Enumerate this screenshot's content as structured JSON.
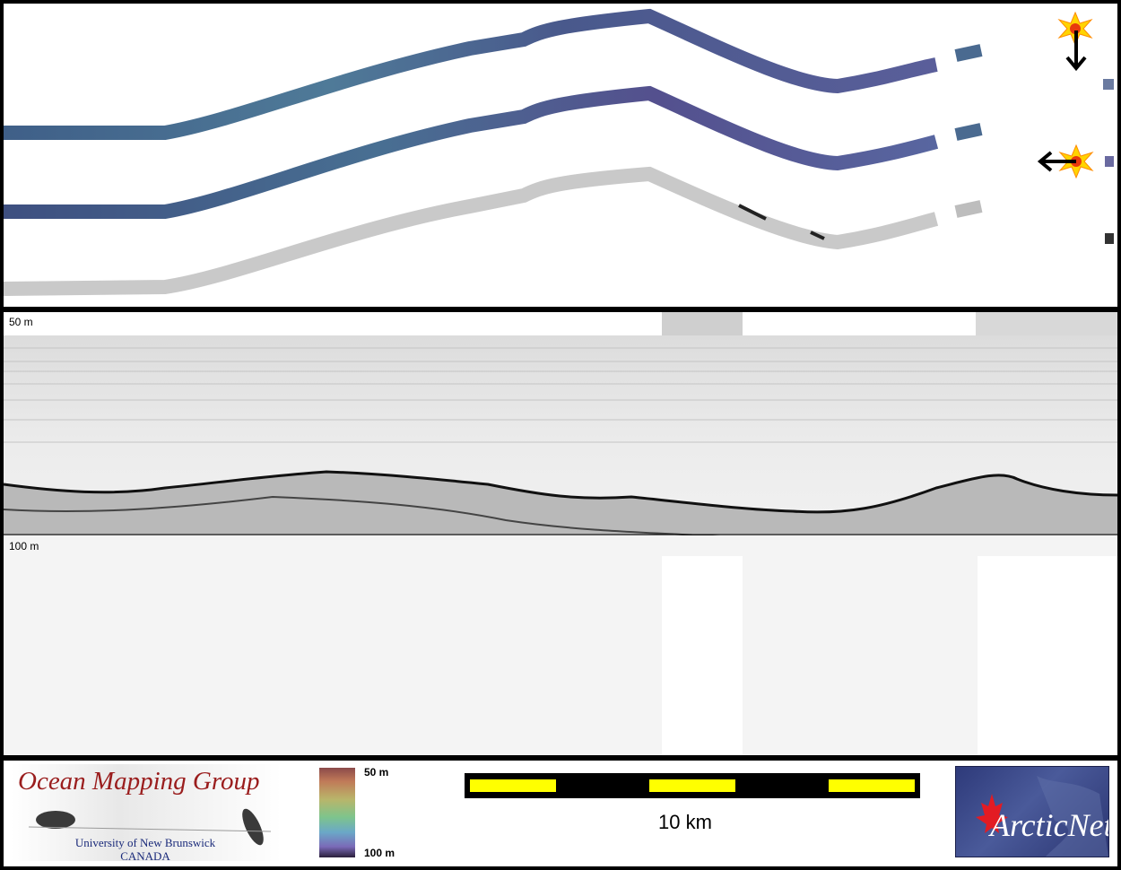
{
  "profile": {
    "depth_top_label": "50 m",
    "depth_bottom_label": "100 m"
  },
  "legend": {
    "colorbar_top": "50 m",
    "colorbar_bottom": "100 m"
  },
  "scale": {
    "label": "10 km"
  },
  "logos": {
    "omg_title": "Ocean Mapping Group",
    "omg_university": "University of New Brunswick",
    "omg_country": "CANADA",
    "arcticnet": "ArcticNet"
  },
  "icons": {
    "sun_top": "sun-illumination-icon",
    "arrow_top": "arrow-down-icon",
    "sun_mid": "sun-illumination-icon",
    "arrow_mid": "arrow-left-icon"
  },
  "colors": {
    "swath_top": "#4a5f86",
    "swath_mid": "#4d5a8a",
    "swath_bottom": "#c8c8c8",
    "scale_yellow": "#ffff00",
    "omg_red": "#9a1d1d",
    "omg_blue": "#1a2a7a"
  }
}
